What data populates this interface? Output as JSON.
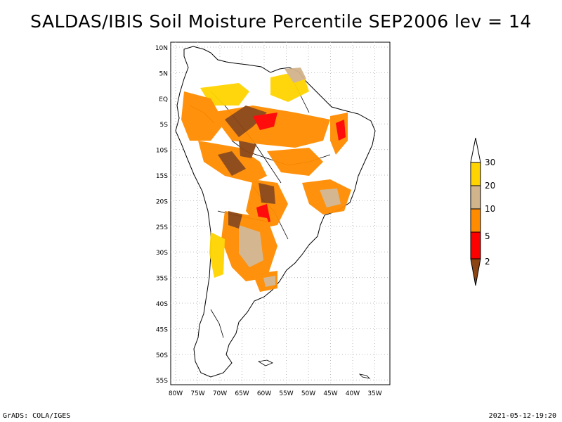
{
  "title": "SALDAS/IBIS Soil Moisture Percentile SEP2006 lev = 14",
  "latitude_labels": [
    "10N",
    "5N",
    "EQ",
    "5S",
    "10S",
    "15S",
    "20S",
    "25S",
    "30S",
    "35S",
    "40S",
    "45S",
    "50S",
    "55S"
  ],
  "longitude_labels": [
    "80W",
    "75W",
    "70W",
    "65W",
    "60W",
    "55W",
    "50W",
    "45W",
    "40W",
    "35W"
  ],
  "legend": {
    "tick_labels": [
      "30",
      "20",
      "10",
      "5",
      "2"
    ],
    "colors": {
      "above_30": "#ffffff",
      "20_30": "#ffd400",
      "10_20": "#d2b48c",
      "5_10": "#ff8c00",
      "2_5": "#ff0000",
      "below_2": "#8b4513"
    }
  },
  "footer": {
    "left": "GrADS: COLA/IGES",
    "right": "2021-05-12-19:20"
  }
}
